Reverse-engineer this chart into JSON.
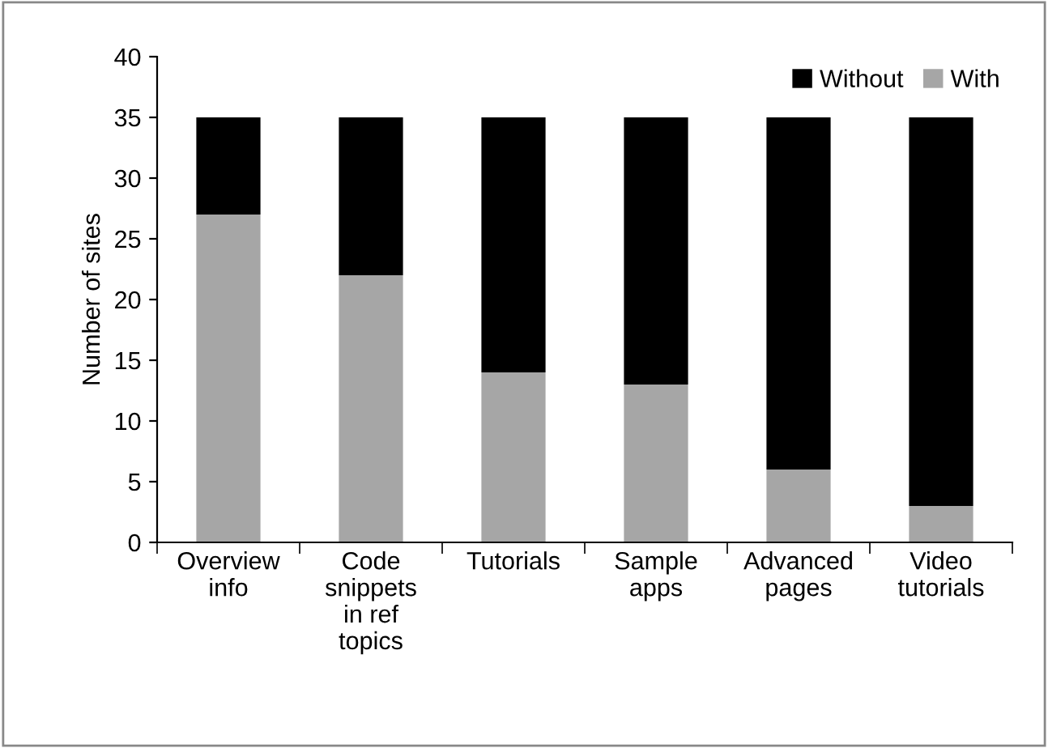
{
  "chart_data": {
    "type": "bar",
    "stacked": true,
    "ylabel": "Number of sites",
    "categories": [
      "Overview\ninfo",
      "Code\nsnippets\nin ref\ntopics",
      "Tutorials",
      "Sample\napps",
      "Advanced\npages",
      "Video\ntutorials"
    ],
    "series": [
      {
        "name": "With",
        "color": "#a6a6a6",
        "values": [
          27,
          22,
          14,
          13,
          6,
          3
        ]
      },
      {
        "name": "Without",
        "color": "#000000",
        "values": [
          8,
          13,
          21,
          22,
          29,
          32
        ]
      }
    ],
    "ylim": [
      0,
      40
    ],
    "yticks": [
      0,
      5,
      10,
      15,
      20,
      25,
      30,
      35,
      40
    ],
    "grid": false,
    "legend": "top right"
  }
}
